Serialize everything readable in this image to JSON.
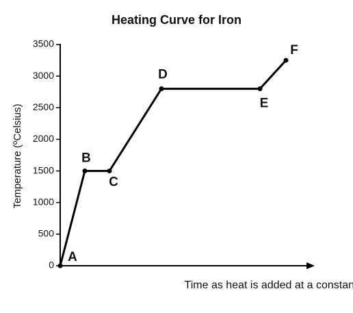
{
  "chart_data": {
    "type": "line",
    "title": "Heating Curve for Iron",
    "x_label": "Time as heat is added at a constant rate",
    "y_label": "Temperature (ºCelsius)",
    "categories": [
      "A",
      "B",
      "C",
      "D",
      "E",
      "F"
    ],
    "values": [
      0,
      1500,
      1500,
      2800,
      2800,
      3250
    ],
    "color": "#000000",
    "ylim": [
      0,
      3500
    ],
    "yticks": [
      0,
      500,
      1000,
      1500,
      2000,
      2500,
      3000,
      3500
    ],
    "grid": false
  }
}
